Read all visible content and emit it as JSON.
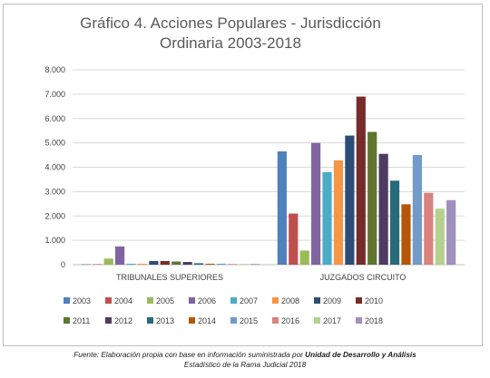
{
  "chart_data": {
    "type": "bar",
    "title_line1": "Gráfico 4. Acciones Populares - Jurisdicción",
    "title_line2": "Ordinaria 2003-2018",
    "xlabel": "",
    "ylabel": "",
    "ylim": [
      0,
      8000
    ],
    "yticks": [
      "0",
      "1.000",
      "2.000",
      "3.000",
      "4.000",
      "5.000",
      "6.000",
      "7.000",
      "8.000"
    ],
    "grid": true,
    "legend_position": "bottom",
    "categories": [
      "TRIBUNALES SUPERIORES",
      "JUZGADOS CIRCUITO"
    ],
    "series": [
      {
        "name": "2003",
        "color": "#4f81bd",
        "values": [
          20,
          4650
        ]
      },
      {
        "name": "2004",
        "color": "#c0504d",
        "values": [
          20,
          2100
        ]
      },
      {
        "name": "2005",
        "color": "#9bbb59",
        "values": [
          250,
          580
        ]
      },
      {
        "name": "2006",
        "color": "#8064a2",
        "values": [
          750,
          5000
        ]
      },
      {
        "name": "2007",
        "color": "#4bacc6",
        "values": [
          40,
          3800
        ]
      },
      {
        "name": "2008",
        "color": "#f79646",
        "values": [
          40,
          4280
        ]
      },
      {
        "name": "2009",
        "color": "#2c4d75",
        "values": [
          150,
          5300
        ]
      },
      {
        "name": "2010",
        "color": "#772c2a",
        "values": [
          150,
          6900
        ]
      },
      {
        "name": "2011",
        "color": "#5f7530",
        "values": [
          130,
          5450
        ]
      },
      {
        "name": "2012",
        "color": "#4d3b62",
        "values": [
          110,
          4550
        ]
      },
      {
        "name": "2013",
        "color": "#276a7c",
        "values": [
          60,
          3450
        ]
      },
      {
        "name": "2014",
        "color": "#b65708",
        "values": [
          40,
          2480
        ]
      },
      {
        "name": "2015",
        "color": "#729aca",
        "values": [
          40,
          4500
        ]
      },
      {
        "name": "2016",
        "color": "#d9827f",
        "values": [
          30,
          2950
        ]
      },
      {
        "name": "2017",
        "color": "#b6d08d",
        "values": [
          30,
          2300
        ]
      },
      {
        "name": "2018",
        "color": "#a18fbf",
        "values": [
          30,
          2650
        ]
      }
    ]
  },
  "source_note": {
    "prefix": "Fuente: Elaboración propia con base en información suministrada por ",
    "emphasis": "Unidad de Desarrollo y Análisis",
    "line2": "Estadístico de la Rama Judicial 2018"
  }
}
